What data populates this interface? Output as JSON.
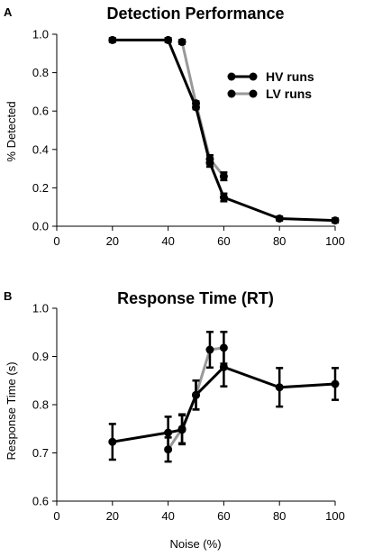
{
  "colors": {
    "hv": "#000000",
    "lv": "#999999"
  },
  "chart_data": [
    {
      "type": "line",
      "panel": "A",
      "title": "Detection Performance",
      "xlabel": "",
      "ylabel": "% Detected",
      "xlim": [
        0,
        100
      ],
      "ylim": [
        0,
        1.0
      ],
      "xticks": [
        "0",
        "20",
        "40",
        "60",
        "80",
        "100"
      ],
      "yticks": [
        "0.0",
        "0.2",
        "0.4",
        "0.6",
        "0.8",
        "1.0"
      ],
      "legend_position": "top-right",
      "series": [
        {
          "name": "HV runs",
          "color": "#000000",
          "points": [
            {
              "x": 20,
              "y": 0.97,
              "err": 0.01
            },
            {
              "x": 40,
              "y": 0.97,
              "err": 0.01
            },
            {
              "x": 50,
              "y": 0.62,
              "err": 0.01
            },
            {
              "x": 55,
              "y": 0.33,
              "err": 0.02
            },
            {
              "x": 60,
              "y": 0.15,
              "err": 0.02
            },
            {
              "x": 80,
              "y": 0.04,
              "err": 0.01
            },
            {
              "x": 100,
              "y": 0.03,
              "err": 0.01
            }
          ]
        },
        {
          "name": "LV runs",
          "color": "#999999",
          "points": [
            {
              "x": 45,
              "y": 0.96,
              "err": 0.01
            },
            {
              "x": 50,
              "y": 0.64,
              "err": 0.01
            },
            {
              "x": 55,
              "y": 0.35,
              "err": 0.02
            },
            {
              "x": 60,
              "y": 0.26,
              "err": 0.02
            }
          ]
        }
      ]
    },
    {
      "type": "line",
      "panel": "B",
      "title": "Response Time (RT)",
      "xlabel": "Noise (%)",
      "ylabel": "Response Time (s)",
      "xlim": [
        0,
        100
      ],
      "ylim": [
        0.6,
        1.0
      ],
      "xticks": [
        "0",
        "20",
        "40",
        "60",
        "80",
        "100"
      ],
      "yticks": [
        "0.6",
        "0.7",
        "0.8",
        "0.9",
        "1.0"
      ],
      "series": [
        {
          "name": "HV runs",
          "color": "#000000",
          "points": [
            {
              "x": 20,
              "y": 0.723,
              "err": 0.037
            },
            {
              "x": 40,
              "y": 0.742,
              "err": 0.033
            },
            {
              "x": 45,
              "y": 0.748,
              "err": 0.03
            },
            {
              "x": 50,
              "y": 0.82,
              "err": 0.03
            },
            {
              "x": 60,
              "y": 0.878,
              "err": 0.04
            },
            {
              "x": 80,
              "y": 0.836,
              "err": 0.04
            },
            {
              "x": 100,
              "y": 0.843,
              "err": 0.033
            }
          ]
        },
        {
          "name": "LV runs",
          "color": "#999999",
          "points": [
            {
              "x": 40,
              "y": 0.707,
              "err": 0.025
            },
            {
              "x": 45,
              "y": 0.75,
              "err": 0.03
            },
            {
              "x": 50,
              "y": 0.82,
              "err": 0.03
            },
            {
              "x": 55,
              "y": 0.914,
              "err": 0.037
            },
            {
              "x": 60,
              "y": 0.918,
              "err": 0.033
            }
          ]
        }
      ]
    }
  ]
}
